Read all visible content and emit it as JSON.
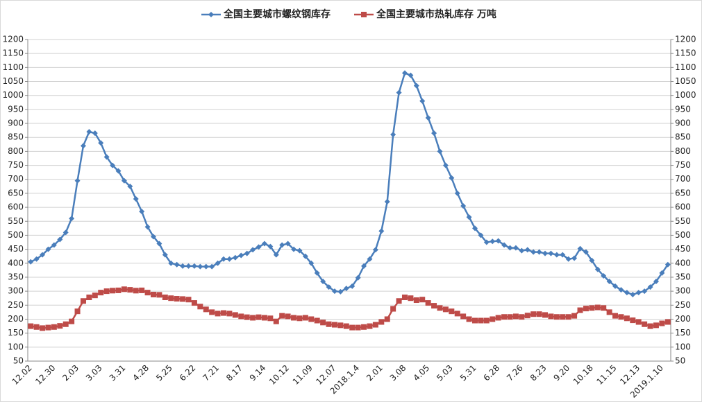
{
  "chart_data": {
    "type": "line",
    "categories": [
      "12.02",
      null,
      null,
      null,
      "12.30",
      null,
      null,
      null,
      "2.03",
      null,
      null,
      null,
      "3.03",
      null,
      null,
      null,
      "3.31",
      null,
      null,
      null,
      "4.28",
      null,
      null,
      null,
      "5.25",
      null,
      null,
      null,
      "6.22",
      null,
      null,
      null,
      "7.21",
      null,
      null,
      null,
      "8.17",
      null,
      null,
      null,
      "9.14",
      null,
      null,
      null,
      "10.12",
      null,
      null,
      null,
      "11.09",
      null,
      null,
      null,
      "12.07",
      null,
      null,
      null,
      "2018.1.4",
      null,
      null,
      null,
      "2.01",
      null,
      null,
      null,
      "3.08",
      null,
      null,
      null,
      "4.05",
      null,
      null,
      null,
      "5.03",
      null,
      null,
      null,
      "5.31",
      null,
      null,
      null,
      "6.28",
      null,
      null,
      null,
      "7.26",
      null,
      null,
      null,
      "8.23",
      null,
      null,
      null,
      "9.20",
      null,
      null,
      null,
      "10.18",
      null,
      null,
      null,
      "11.15",
      null,
      null,
      null,
      "12.13",
      null,
      null,
      null,
      "2019.1.10",
      null
    ],
    "series": [
      {
        "name": "全国主要城市螺纹钢库存",
        "color": "#4a7ebb",
        "marker": "diamond",
        "values": [
          405,
          415,
          430,
          450,
          465,
          485,
          510,
          560,
          695,
          820,
          870,
          865,
          830,
          780,
          750,
          730,
          695,
          675,
          630,
          585,
          530,
          495,
          470,
          430,
          400,
          395,
          390,
          390,
          390,
          388,
          388,
          388,
          400,
          415,
          415,
          420,
          428,
          435,
          448,
          458,
          470,
          460,
          430,
          465,
          470,
          450,
          445,
          425,
          400,
          365,
          335,
          315,
          300,
          298,
          310,
          318,
          348,
          390,
          415,
          448,
          515,
          620,
          860,
          1010,
          1080,
          1072,
          1035,
          980,
          920,
          865,
          800,
          750,
          705,
          650,
          605,
          565,
          525,
          500,
          475,
          478,
          480,
          465,
          455,
          455,
          445,
          448,
          440,
          440,
          435,
          435,
          430,
          430,
          415,
          418,
          452,
          440,
          410,
          378,
          355,
          335,
          318,
          305,
          295,
          288,
          295,
          300,
          315,
          335,
          365,
          395
        ]
      },
      {
        "name": "全国主要城市热轧库存 万吨",
        "color": "#be4b48",
        "marker": "square",
        "axis": "y2",
        "values": [
          175,
          172,
          168,
          170,
          172,
          176,
          182,
          192,
          228,
          265,
          278,
          285,
          295,
          300,
          302,
          303,
          307,
          305,
          302,
          303,
          295,
          288,
          287,
          278,
          275,
          273,
          272,
          270,
          258,
          245,
          235,
          225,
          220,
          222,
          220,
          215,
          210,
          207,
          205,
          207,
          205,
          203,
          192,
          212,
          210,
          205,
          203,
          205,
          200,
          195,
          188,
          182,
          180,
          178,
          175,
          170,
          170,
          172,
          175,
          180,
          190,
          200,
          237,
          265,
          278,
          275,
          268,
          270,
          258,
          248,
          240,
          235,
          228,
          220,
          210,
          200,
          195,
          195,
          195,
          200,
          205,
          208,
          208,
          210,
          208,
          213,
          218,
          218,
          215,
          210,
          208,
          208,
          208,
          212,
          232,
          238,
          240,
          242,
          240,
          225,
          212,
          208,
          203,
          196,
          190,
          182,
          175,
          178,
          185,
          190
        ]
      }
    ],
    "ylim": [
      50,
      1200
    ],
    "yticks": [
      50,
      100,
      150,
      200,
      250,
      300,
      350,
      400,
      450,
      500,
      550,
      600,
      650,
      700,
      750,
      800,
      850,
      900,
      950,
      1000,
      1050,
      1100,
      1150,
      1200
    ],
    "y2lim": [
      50,
      1200
    ],
    "y2ticks": [
      50,
      100,
      150,
      200,
      250,
      300,
      350,
      400,
      450,
      500,
      550,
      600,
      650,
      700,
      750,
      800,
      850,
      900,
      950,
      1000,
      1050,
      1100,
      1150,
      1200
    ],
    "grid": true,
    "legend": "top"
  }
}
